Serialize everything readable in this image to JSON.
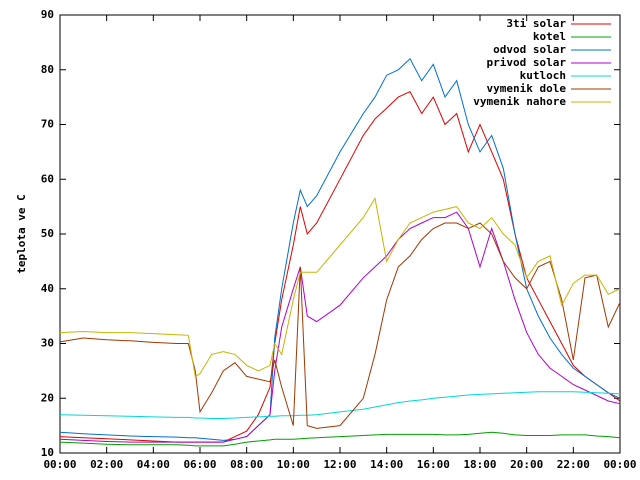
{
  "chart_data": {
    "type": "line",
    "y_label": "teplota ve C",
    "x": [
      0,
      1,
      2,
      3,
      4,
      5,
      5.5,
      5.8,
      6,
      6.5,
      7,
      7.5,
      8,
      8.5,
      9,
      9.2,
      9.5,
      10,
      10.3,
      10.6,
      11,
      12,
      13,
      13.5,
      14,
      14.5,
      15,
      15.5,
      16,
      16.5,
      17,
      17.5,
      18,
      18.5,
      19,
      19.5,
      20,
      20.5,
      21,
      21.5,
      22,
      22.5,
      23,
      23.5,
      24
    ],
    "xlim": [
      0,
      24
    ],
    "xticks": [
      {
        "value": 0,
        "label": "00:00"
      },
      {
        "value": 2,
        "label": "02:00"
      },
      {
        "value": 4,
        "label": "04:00"
      },
      {
        "value": 6,
        "label": "06:00"
      },
      {
        "value": 8,
        "label": "08:00"
      },
      {
        "value": 10,
        "label": "10:00"
      },
      {
        "value": 12,
        "label": "12:00"
      },
      {
        "value": 14,
        "label": "14:00"
      },
      {
        "value": 16,
        "label": "16:00"
      },
      {
        "value": 18,
        "label": "18:00"
      },
      {
        "value": 20,
        "label": "20:00"
      },
      {
        "value": 22,
        "label": "22:00"
      },
      {
        "value": 24,
        "label": "00:00"
      }
    ],
    "ylim": [
      10,
      90
    ],
    "yticks": [
      10,
      20,
      30,
      40,
      50,
      60,
      70,
      80,
      90
    ],
    "grid": false,
    "legend": "top-right",
    "series": [
      {
        "name": "3ti solar",
        "color": "#e00000",
        "values": [
          13,
          12.8,
          12.6,
          12.4,
          12.2,
          12,
          12,
          12,
          12,
          12,
          12,
          13,
          14,
          17,
          22,
          30,
          38,
          48,
          55,
          50,
          52,
          60,
          68,
          71,
          73,
          75,
          76,
          72,
          75,
          70,
          72,
          65,
          70,
          65,
          60,
          50,
          42,
          38,
          34,
          30,
          26,
          24,
          22.5,
          21,
          19.5
        ]
      },
      {
        "name": "kotel",
        "color": "#00a000",
        "values": [
          12,
          11.8,
          11.6,
          11.5,
          11.5,
          11.5,
          11.4,
          11.3,
          11.3,
          11.3,
          11.3,
          11.6,
          12,
          12.2,
          12.4,
          12.5,
          12.5,
          12.5,
          12.6,
          12.7,
          12.8,
          13,
          13.2,
          13.3,
          13.4,
          13.4,
          13.4,
          13.4,
          13.4,
          13.3,
          13.3,
          13.4,
          13.6,
          13.8,
          13.6,
          13.3,
          13.2,
          13.2,
          13.2,
          13.3,
          13.3,
          13.3,
          13.1,
          13,
          12.8
        ]
      },
      {
        "name": "odvod solar",
        "color": "#0070d0",
        "values": [
          13.8,
          13.5,
          13.3,
          13.1,
          13,
          12.9,
          12.8,
          12.8,
          12.7,
          12.5,
          12.3,
          12.5,
          13,
          15,
          17,
          31,
          40,
          52,
          58,
          55,
          57,
          65,
          72,
          75,
          79,
          80,
          82,
          78,
          81,
          75,
          78,
          70,
          65,
          68,
          62,
          50,
          40,
          35,
          31,
          28,
          25.5,
          24,
          22.5,
          21,
          20
        ]
      },
      {
        "name": "privod solar",
        "color": "#b000d0",
        "values": [
          12.5,
          12.3,
          12.1,
          12,
          12,
          12,
          12,
          12,
          12,
          12,
          12,
          12.5,
          13,
          15,
          17,
          25,
          33,
          40,
          44,
          35,
          34,
          37,
          42,
          44,
          46,
          49,
          51,
          52,
          53,
          53,
          54,
          51,
          44,
          51,
          45,
          38,
          32,
          28,
          25.5,
          24,
          22.5,
          21.5,
          20.5,
          19.5,
          19
        ]
      },
      {
        "name": "kutloch",
        "color": "#00d8d8",
        "values": [
          17,
          16.9,
          16.8,
          16.7,
          16.6,
          16.5,
          16.5,
          16.4,
          16.4,
          16.3,
          16.3,
          16.4,
          16.5,
          16.6,
          16.7,
          16.7,
          16.8,
          16.8,
          16.9,
          16.9,
          17,
          17.5,
          18,
          18.4,
          18.8,
          19.2,
          19.5,
          19.7,
          20,
          20.2,
          20.4,
          20.6,
          20.7,
          20.8,
          20.9,
          21,
          21.1,
          21.2,
          21.2,
          21.2,
          21.2,
          21.1,
          21,
          20.9,
          20.8
        ]
      },
      {
        "name": "vymenik dole",
        "color": "#a03800",
        "values": [
          30.3,
          31,
          30.7,
          30.5,
          30.2,
          30,
          30,
          25,
          17.5,
          21,
          25,
          26.5,
          24,
          23.5,
          23,
          27,
          22,
          15,
          44,
          15,
          14.5,
          15,
          20,
          28,
          38,
          44,
          46,
          49,
          51,
          52,
          52,
          51,
          52,
          50,
          45,
          42,
          40,
          44,
          45,
          38,
          27,
          42,
          42.5,
          33,
          37.5
        ]
      },
      {
        "name": "vymenik nahore",
        "color": "#c8b400",
        "values": [
          32,
          32.2,
          32,
          32,
          31.8,
          31.6,
          31.5,
          24,
          24.5,
          28,
          28.5,
          28,
          26,
          25,
          26,
          30,
          28,
          38,
          43,
          43,
          43,
          48,
          53,
          56.5,
          45,
          49,
          52,
          53,
          54,
          54.5,
          55,
          52,
          51,
          53,
          50,
          48,
          42,
          45,
          46,
          37,
          41,
          42.5,
          42.5,
          39,
          40
        ]
      }
    ]
  }
}
